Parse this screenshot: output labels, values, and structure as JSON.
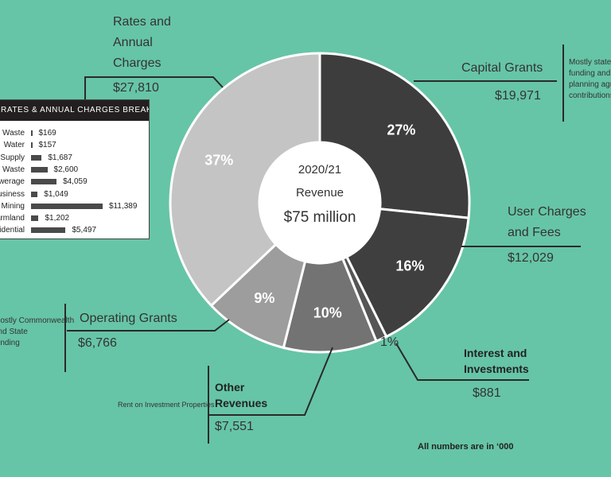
{
  "chart_data": {
    "type": "pie",
    "center_title": "2020/21",
    "center_subtitle": "Revenue",
    "center_total": "$75 million",
    "units_note": "All numbers are in ‘000",
    "slices": [
      {
        "name": "Capital Grants",
        "value": 19971,
        "value_label": "$19,971",
        "percent_label": "27%",
        "color": "#3d3d3d",
        "note": "Mostly state funding and planning agreement contributions"
      },
      {
        "name": "User Charges and Fees",
        "value": 12029,
        "value_label": "$12,029",
        "percent_label": "16%",
        "color": "#3f3f3f",
        "note": ""
      },
      {
        "name": "Interest and Investments",
        "value": 881,
        "value_label": "$881",
        "percent_label": "1%",
        "color": "#555555",
        "note": ""
      },
      {
        "name": "Other Revenues",
        "value": 7551,
        "value_label": "$7,551",
        "percent_label": "10%",
        "color": "#737373",
        "note": "Rent on Investment Properties"
      },
      {
        "name": "Operating Grants",
        "value": 6766,
        "value_label": "$6,766",
        "percent_label": "9%",
        "color": "#9d9d9d",
        "note": "Mostly Commonwealth and State funding"
      },
      {
        "name": "Rates and Annual Charges",
        "value": 27810,
        "value_label": "$27,810",
        "percent_label": "37%",
        "color": "#c4c4c4",
        "note": ""
      }
    ],
    "breakdown": {
      "title": "RATES & ANNUAL CHARGES BREAKDOWN",
      "type": "bar",
      "categories": [
        "Waste",
        "Water",
        "Supply",
        "Waste",
        "Sewerage",
        "Business",
        "Mining",
        "Farmland",
        "Residential"
      ],
      "values": [
        169,
        157,
        1687,
        2600,
        4059,
        1049,
        11389,
        1202,
        5497
      ],
      "value_labels": [
        "$169",
        "$157",
        "$1,687",
        "$2,600",
        "$4,059",
        "$1,049",
        "$11,389",
        "$1,202",
        "$5,497"
      ],
      "bar_color": "#4a4a4a"
    }
  },
  "labels": {
    "rates_line1": "Rates and",
    "rates_line2": "Annual",
    "rates_line3": "Charges",
    "capital": "Capital Grants",
    "capital_note_1": "Mostly state",
    "capital_note_2": "funding and",
    "capital_note_3": "planning agreement",
    "capital_note_4": "contributions",
    "user_line1": "User Charges",
    "user_line2": "and Fees",
    "interest_line1": "Interest and",
    "interest_line2": "Investments",
    "other_line1": "Other",
    "other_line2": "Revenues",
    "other_note": "Rent on Investment Properties",
    "operating": "Operating Grants",
    "operating_note_1": "Mostly Commonwealth",
    "operating_note_2": "and State",
    "operating_note_3": "funding"
  }
}
